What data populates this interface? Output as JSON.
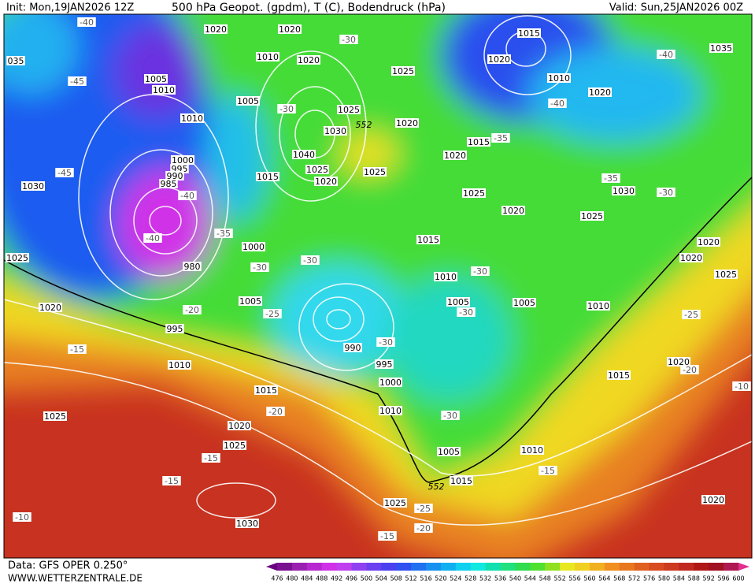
{
  "header": {
    "init": "Init: Mon,19JAN2026 12Z",
    "title": "500 hPa Geopot. (gpdm), T (C), Bodendruck (hPa)",
    "valid": "Valid: Sun,25JAN2026 00Z"
  },
  "footer": {
    "data": "Data: GFS OPER 0.250°",
    "website": "WWW.WETTERZENTRALE.DE"
  },
  "colorbar": {
    "labels": [
      476,
      480,
      484,
      488,
      492,
      496,
      500,
      504,
      508,
      512,
      516,
      520,
      524,
      528,
      532,
      536,
      540,
      544,
      548,
      552,
      556,
      560,
      564,
      568,
      572,
      576,
      580,
      584,
      588,
      592,
      596,
      600
    ],
    "colors": [
      "#6a0080",
      "#7a1090",
      "#9a20b0",
      "#b828d0",
      "#d030e8",
      "#c040f0",
      "#9040f0",
      "#6a40f0",
      "#4a40f0",
      "#3050f0",
      "#2070f0",
      "#1890f0",
      "#10b0f0",
      "#10d0f0",
      "#10e8e0",
      "#10e0b0",
      "#20e080",
      "#30dc50",
      "#50e030",
      "#90e020",
      "#e8e820",
      "#f0d020",
      "#f0b020",
      "#f09020",
      "#e87820",
      "#e06020",
      "#d84a20",
      "#cc3a20",
      "#c02820",
      "#b01818",
      "#a01020",
      "#b01850",
      "#e03090"
    ]
  },
  "map": {
    "pressure_labels": [
      "1020",
      "1020",
      "1015",
      "1035",
      "035",
      "1010",
      "1020",
      "1020",
      "1025",
      "1005",
      "1010",
      "1010",
      "1020",
      "1005",
      "1025",
      "1010",
      "1020",
      "1030",
      "1015",
      "1040",
      "1020",
      "1000",
      "995",
      "1025",
      "1025",
      "990",
      "1015",
      "1020",
      "985",
      "1030",
      "1025",
      "1030",
      "1020",
      "1025",
      "1015",
      "1025",
      "1000",
      "1020",
      "1020",
      "980",
      "1010",
      "1025",
      "1005",
      "1005",
      "1005",
      "1010",
      "1020",
      "995",
      "990",
      "995",
      "1010",
      "1020",
      "1015",
      "1000",
      "1015",
      "1010",
      "1025",
      "1020",
      "1025",
      "1005",
      "1010",
      "1015",
      "1025",
      "1020",
      "1030"
    ],
    "temperature_labels": [
      "-40",
      "-30",
      "-40",
      "-45",
      "-40",
      "-30",
      "-35",
      "-45",
      "-35",
      "-40",
      "-30",
      "-35",
      "-40",
      "-30",
      "-30",
      "-30",
      "-25",
      "-30",
      "-20",
      "-25",
      "-30",
      "-15",
      "-20",
      "-20",
      "-30",
      "-10",
      "-15",
      "-15",
      "-15",
      "-25",
      "-10",
      "-20",
      "-15"
    ],
    "geopotential_labels": [
      "552",
      "552"
    ]
  }
}
